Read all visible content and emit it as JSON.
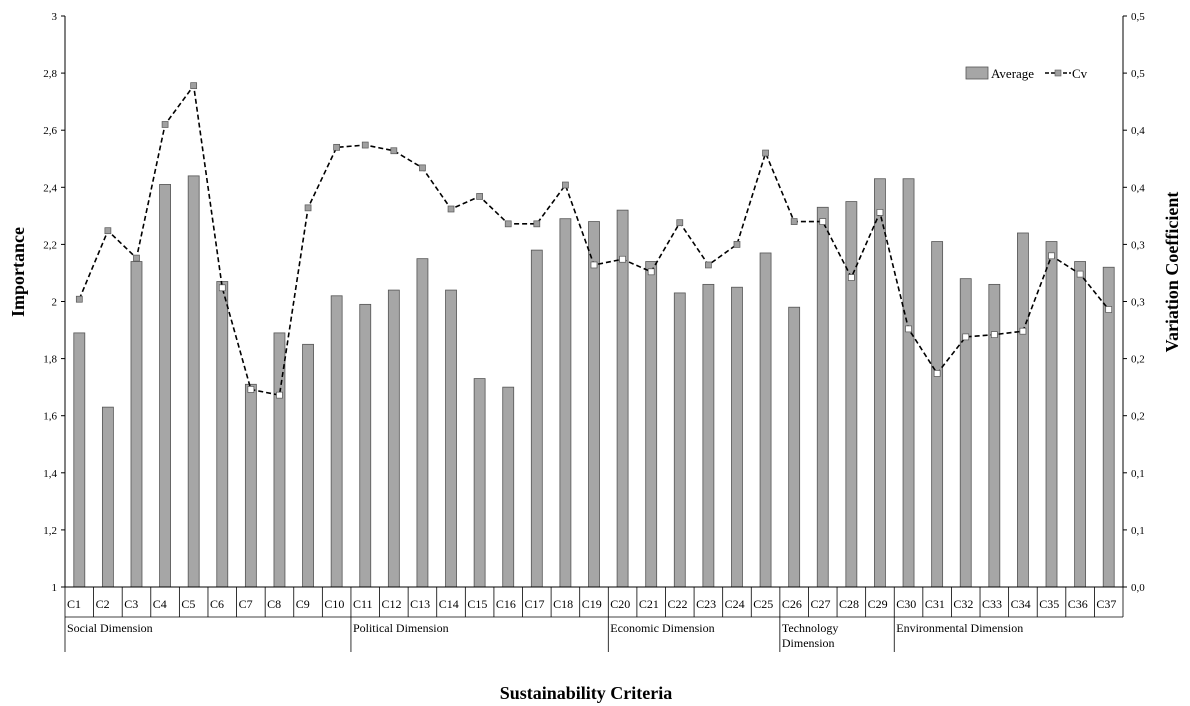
{
  "chart_data": {
    "type": "bar",
    "title": "",
    "xlabel": "Sustainability Criteria",
    "ylabel": "Importance",
    "y2label": "Variation Coefficient",
    "ylim": [
      1,
      3
    ],
    "y2lim": [
      0,
      0.5
    ],
    "yticks": [
      "1",
      "1,2",
      "1,4",
      "1,6",
      "1,8",
      "2",
      "2,2",
      "2,4",
      "2,6",
      "2,8",
      "3"
    ],
    "y2ticks": [
      "0,0",
      "0,1",
      "0,1",
      "0,2",
      "0,2",
      "0,3",
      "0,3",
      "0,4",
      "0,4",
      "0,5",
      "0,5"
    ],
    "categories": [
      "C1",
      "C2",
      "C3",
      "C4",
      "C5",
      "C6",
      "C7",
      "C8",
      "C9",
      "C10",
      "C11",
      "C12",
      "C13",
      "C14",
      "C15",
      "C16",
      "C17",
      "C18",
      "C19",
      "C20",
      "C21",
      "C22",
      "C23",
      "C24",
      "C25",
      "C26",
      "C27",
      "C28",
      "C29",
      "C30",
      "C31",
      "C32",
      "C33",
      "C34",
      "C35",
      "C36",
      "C37"
    ],
    "legend": {
      "position": "top-right",
      "bar_label": "Average",
      "line_label": "Cv"
    },
    "series": [
      {
        "name": "Average",
        "type": "bar",
        "axis": "left",
        "color": "#a6a6a6",
        "values": [
          1.89,
          1.63,
          2.14,
          2.41,
          2.44,
          2.07,
          1.71,
          1.89,
          1.85,
          2.02,
          1.99,
          2.04,
          2.15,
          2.04,
          1.73,
          1.7,
          2.18,
          2.29,
          2.28,
          2.32,
          2.14,
          2.03,
          2.06,
          2.05,
          2.17,
          1.98,
          2.33,
          2.35,
          2.43,
          2.43,
          2.21,
          2.08,
          2.06,
          2.24,
          2.21,
          2.14,
          2.12
        ]
      },
      {
        "name": "Cv",
        "type": "line",
        "axis": "right",
        "color": "#000000",
        "values": [
          0.252,
          0.312,
          0.288,
          0.405,
          0.439,
          0.262,
          0.173,
          0.168,
          0.332,
          0.385,
          0.387,
          0.382,
          0.367,
          0.331,
          0.342,
          0.318,
          0.318,
          0.352,
          0.282,
          0.287,
          0.276,
          0.319,
          0.282,
          0.3,
          0.38,
          0.32,
          0.32,
          0.271,
          0.328,
          0.226,
          0.187,
          0.219,
          0.221,
          0.224,
          0.29,
          0.274,
          0.243
        ]
      }
    ],
    "dimensions": [
      {
        "label": "Social  Dimension",
        "start": 0,
        "end": 9
      },
      {
        "label": "Political  Dimension",
        "start": 10,
        "end": 18
      },
      {
        "label": "Economic  Dimension",
        "start": 19,
        "end": 24
      },
      {
        "label": "Technology Dimension",
        "start": 25,
        "end": 28
      },
      {
        "label": "Environmental Dimension",
        "start": 29,
        "end": 36
      }
    ]
  }
}
